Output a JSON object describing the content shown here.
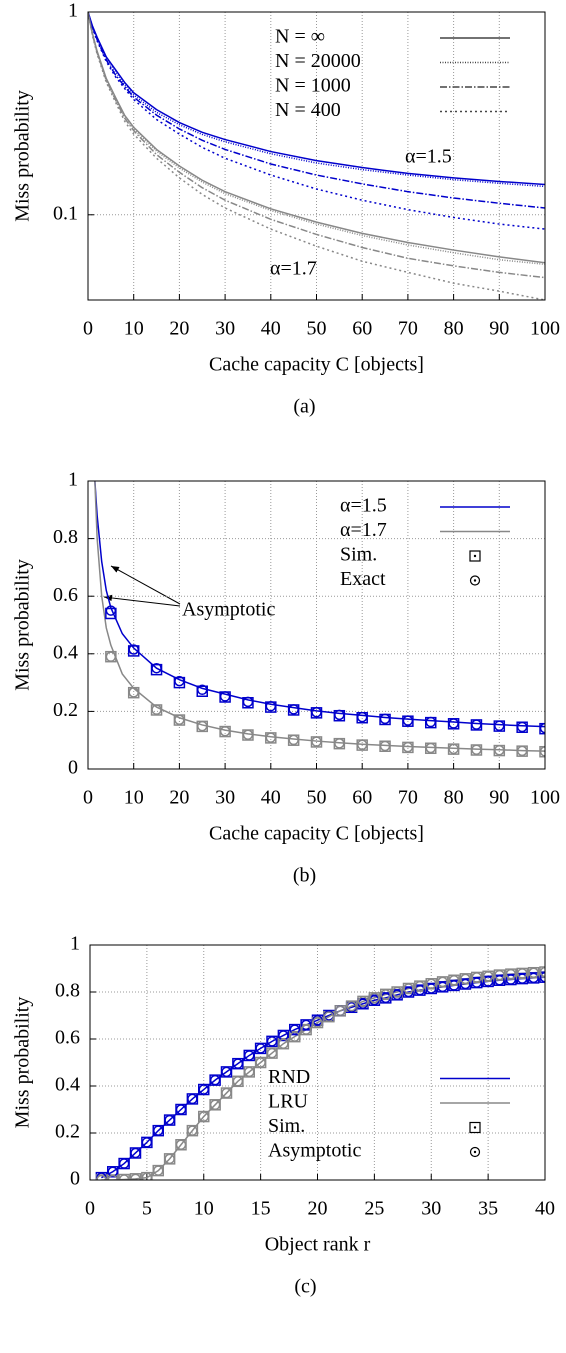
{
  "chart_data": [
    {
      "type": "line",
      "ylabel": "Miss probability",
      "xlabel": "Cache capacity C [objects]",
      "caption": "(a)",
      "log_y": true,
      "grid": true,
      "legend": "upper right",
      "xlim": [
        0,
        100
      ],
      "xticks": [
        0,
        10,
        20,
        30,
        40,
        50,
        60,
        70,
        80,
        90,
        100
      ],
      "ylim": [
        0.038,
        1
      ],
      "yticks": [
        0.1,
        1
      ],
      "x": [
        0,
        1,
        2,
        4,
        6,
        8,
        10,
        15,
        20,
        25,
        30,
        40,
        50,
        60,
        70,
        80,
        90,
        100
      ],
      "series": [
        {
          "name": "N = ∞",
          "dash": "none",
          "legend_color": "#444444",
          "curves": [
            {
              "color": "#0000cc",
              "values": [
                1,
                0.85,
                0.75,
                0.6,
                0.52,
                0.45,
                0.4,
                0.33,
                0.285,
                0.255,
                0.235,
                0.205,
                0.185,
                0.171,
                0.16,
                0.152,
                0.146,
                0.141
              ]
            },
            {
              "color": "#888888",
              "values": [
                1,
                0.78,
                0.64,
                0.47,
                0.38,
                0.31,
                0.27,
                0.21,
                0.174,
                0.148,
                0.13,
                0.107,
                0.092,
                0.081,
                0.073,
                0.067,
                0.062,
                0.058
              ]
            }
          ]
        },
        {
          "name": "N = 20000",
          "dash": "1 1.5",
          "legend_color": "#444444",
          "curves": [
            {
              "color": "#0000cc",
              "values": [
                1,
                0.84,
                0.74,
                0.59,
                0.51,
                0.44,
                0.39,
                0.32,
                0.278,
                0.249,
                0.229,
                0.2,
                0.18,
                0.167,
                0.157,
                0.149,
                0.143,
                0.138
              ]
            },
            {
              "color": "#888888",
              "values": [
                1,
                0.77,
                0.63,
                0.46,
                0.37,
                0.305,
                0.265,
                0.206,
                0.17,
                0.145,
                0.127,
                0.105,
                0.09,
                0.079,
                0.071,
                0.065,
                0.06,
                0.057
              ]
            }
          ]
        },
        {
          "name": "N = 1000",
          "dash": "7 2 1.5 2",
          "legend_color": "#444444",
          "curves": [
            {
              "color": "#0000cc",
              "values": [
                1,
                0.84,
                0.73,
                0.58,
                0.49,
                0.43,
                0.38,
                0.31,
                0.265,
                0.233,
                0.21,
                0.178,
                0.157,
                0.142,
                0.13,
                0.121,
                0.114,
                0.108
              ]
            },
            {
              "color": "#888888",
              "values": [
                1,
                0.77,
                0.63,
                0.46,
                0.37,
                0.3,
                0.26,
                0.198,
                0.162,
                0.136,
                0.118,
                0.095,
                0.08,
                0.069,
                0.061,
                0.056,
                0.052,
                0.049
              ]
            }
          ]
        },
        {
          "name": "N = 400",
          "dash": "2 3",
          "legend_color": "#444444",
          "curves": [
            {
              "color": "#0000cc",
              "values": [
                1,
                0.83,
                0.72,
                0.57,
                0.48,
                0.42,
                0.37,
                0.295,
                0.25,
                0.215,
                0.19,
                0.157,
                0.134,
                0.118,
                0.106,
                0.097,
                0.09,
                0.085
              ]
            },
            {
              "color": "#888888",
              "values": [
                1,
                0.76,
                0.62,
                0.45,
                0.36,
                0.29,
                0.25,
                0.19,
                0.152,
                0.126,
                0.108,
                0.085,
                0.07,
                0.059,
                0.052,
                0.046,
                0.042,
                0.038
              ]
            }
          ]
        }
      ],
      "annotations": [
        "α=1.5",
        "α=1.7"
      ]
    },
    {
      "type": "line",
      "ylabel": "Miss probability",
      "xlabel": "Cache capacity C [objects]",
      "caption": "(b)",
      "log_y": false,
      "grid": true,
      "legend": "upper right",
      "xlim": [
        0,
        100
      ],
      "xticks": [
        0,
        10,
        20,
        30,
        40,
        50,
        60,
        70,
        80,
        90,
        100
      ],
      "ylim": [
        0,
        1
      ],
      "yticks": [
        0,
        0.2,
        0.4,
        0.6,
        0.8,
        1
      ],
      "x": [
        1.5,
        2,
        3,
        4,
        5,
        7.5,
        10,
        15,
        20,
        25,
        30,
        35,
        40,
        45,
        50,
        55,
        60,
        65,
        70,
        75,
        80,
        85,
        90,
        95,
        100
      ],
      "marker_x": [
        5,
        10,
        15,
        20,
        25,
        30,
        35,
        40,
        45,
        50,
        55,
        60,
        65,
        70,
        75,
        80,
        85,
        90,
        95,
        100
      ],
      "series": [
        {
          "name": "α=1.5",
          "dash": "none",
          "curves": [
            {
              "color": "#0000cc",
              "values": [
                1.0,
                0.88,
                0.72,
                0.62,
                0.56,
                0.47,
                0.42,
                0.35,
                0.31,
                0.28,
                0.26,
                0.24,
                0.225,
                0.213,
                0.202,
                0.193,
                0.186,
                0.179,
                0.173,
                0.168,
                0.163,
                0.158,
                0.154,
                0.15,
                0.147
              ]
            }
          ]
        },
        {
          "name": "α=1.7",
          "dash": "none",
          "curves": [
            {
              "color": "#888888",
              "values": [
                1.0,
                0.8,
                0.6,
                0.49,
                0.43,
                0.33,
                0.28,
                0.215,
                0.178,
                0.153,
                0.135,
                0.122,
                0.112,
                0.104,
                0.097,
                0.091,
                0.086,
                0.082,
                0.078,
                0.075,
                0.072,
                0.069,
                0.067,
                0.064,
                0.062
              ]
            }
          ]
        },
        {
          "name": "Sim.",
          "marker": "square",
          "legend_color": "#000000",
          "curves": [
            {
              "color": "#0000cc",
              "values": [
                0.54,
                0.41,
                0.345,
                0.3,
                0.27,
                0.25,
                0.23,
                0.215,
                0.205,
                0.195,
                0.185,
                0.178,
                0.172,
                0.166,
                0.161,
                0.157,
                0.153,
                0.149,
                0.145,
                0.14
              ]
            },
            {
              "color": "#888888",
              "values": [
                0.39,
                0.265,
                0.205,
                0.17,
                0.148,
                0.13,
                0.118,
                0.108,
                0.1,
                0.094,
                0.088,
                0.083,
                0.079,
                0.075,
                0.072,
                0.069,
                0.066,
                0.064,
                0.062,
                0.06
              ]
            }
          ]
        },
        {
          "name": "Exact",
          "marker": "circle",
          "legend_color": "#000000",
          "curves": [
            {
              "color": "#0000cc",
              "values": [
                0.55,
                0.415,
                0.35,
                0.305,
                0.275,
                0.252,
                0.233,
                0.218,
                0.207,
                0.197,
                0.188,
                0.18,
                0.174,
                0.168,
                0.163,
                0.158,
                0.154,
                0.15,
                0.146,
                0.142
              ]
            },
            {
              "color": "#888888",
              "values": [
                0.39,
                0.266,
                0.206,
                0.171,
                0.149,
                0.131,
                0.119,
                0.109,
                0.101,
                0.095,
                0.089,
                0.084,
                0.08,
                0.076,
                0.073,
                0.07,
                0.067,
                0.065,
                0.063,
                0.061
              ]
            }
          ]
        }
      ],
      "annotations": [
        "Asymptotic"
      ]
    },
    {
      "type": "line",
      "ylabel": "Miss probability",
      "xlabel": "Object rank r",
      "caption": "(c)",
      "log_y": false,
      "grid": true,
      "legend": "lower right",
      "xlim": [
        0,
        40
      ],
      "xticks": [
        0,
        5,
        10,
        15,
        20,
        25,
        30,
        35,
        40
      ],
      "ylim": [
        0,
        1
      ],
      "yticks": [
        0,
        0.2,
        0.4,
        0.6,
        0.8,
        1
      ],
      "x": [
        1,
        2,
        3,
        4,
        5,
        6,
        7,
        8,
        9,
        10,
        11,
        12,
        13,
        14,
        15,
        16,
        17,
        18,
        19,
        20,
        21,
        22,
        23,
        24,
        25,
        26,
        27,
        28,
        29,
        30,
        31,
        32,
        33,
        34,
        35,
        36,
        37,
        38,
        39,
        40
      ],
      "series": [
        {
          "name": "RND",
          "dash": "none",
          "curves": [
            {
              "color": "#0000cc",
              "values": [
                0.01,
                0.035,
                0.07,
                0.115,
                0.16,
                0.21,
                0.255,
                0.3,
                0.345,
                0.385,
                0.425,
                0.46,
                0.495,
                0.53,
                0.56,
                0.59,
                0.615,
                0.64,
                0.66,
                0.68,
                0.7,
                0.72,
                0.735,
                0.75,
                0.765,
                0.775,
                0.788,
                0.8,
                0.808,
                0.815,
                0.822,
                0.828,
                0.834,
                0.84,
                0.845,
                0.85,
                0.853,
                0.857,
                0.86,
                0.863
              ]
            }
          ]
        },
        {
          "name": "LRU",
          "dash": "none",
          "curves": [
            {
              "color": "#888888",
              "values": [
                0,
                0,
                0.002,
                0.005,
                0.01,
                0.04,
                0.09,
                0.15,
                0.21,
                0.27,
                0.32,
                0.37,
                0.42,
                0.46,
                0.5,
                0.54,
                0.58,
                0.61,
                0.64,
                0.67,
                0.695,
                0.72,
                0.74,
                0.76,
                0.775,
                0.79,
                0.8,
                0.815,
                0.825,
                0.835,
                0.843,
                0.85,
                0.856,
                0.862,
                0.867,
                0.872,
                0.876,
                0.879,
                0.882,
                0.885
              ]
            }
          ]
        },
        {
          "name": "Sim.",
          "marker": "square",
          "legend_color": "#000000",
          "curves": [
            {
              "color": "#0000cc",
              "values": [
                0.01,
                0.035,
                0.07,
                0.115,
                0.16,
                0.21,
                0.255,
                0.3,
                0.345,
                0.385,
                0.425,
                0.46,
                0.495,
                0.53,
                0.56,
                0.59,
                0.615,
                0.64,
                0.66,
                0.68,
                0.7,
                0.72,
                0.735,
                0.75,
                0.765,
                0.775,
                0.788,
                0.8,
                0.808,
                0.815,
                0.822,
                0.828,
                0.834,
                0.84,
                0.845,
                0.85,
                0.853,
                0.857,
                0.86,
                0.863
              ]
            },
            {
              "color": "#888888",
              "values": [
                0,
                0,
                0.002,
                0.005,
                0.01,
                0.04,
                0.09,
                0.15,
                0.21,
                0.27,
                0.32,
                0.37,
                0.42,
                0.46,
                0.5,
                0.54,
                0.58,
                0.61,
                0.64,
                0.67,
                0.695,
                0.72,
                0.74,
                0.76,
                0.775,
                0.79,
                0.8,
                0.815,
                0.825,
                0.835,
                0.843,
                0.85,
                0.856,
                0.862,
                0.867,
                0.872,
                0.876,
                0.879,
                0.882,
                0.885
              ]
            }
          ]
        },
        {
          "name": "Asymptotic",
          "marker": "circle",
          "legend_color": "#000000",
          "curves": [
            {
              "color": "#0000cc",
              "values": [
                0.01,
                0.035,
                0.07,
                0.115,
                0.16,
                0.21,
                0.255,
                0.3,
                0.345,
                0.385,
                0.425,
                0.46,
                0.495,
                0.53,
                0.56,
                0.59,
                0.615,
                0.64,
                0.66,
                0.68,
                0.7,
                0.72,
                0.735,
                0.75,
                0.765,
                0.775,
                0.788,
                0.8,
                0.808,
                0.815,
                0.822,
                0.828,
                0.834,
                0.84,
                0.845,
                0.85,
                0.853,
                0.857,
                0.86,
                0.863
              ]
            },
            {
              "color": "#888888",
              "values": [
                0,
                0,
                0.002,
                0.005,
                0.01,
                0.04,
                0.09,
                0.15,
                0.21,
                0.27,
                0.32,
                0.37,
                0.42,
                0.46,
                0.5,
                0.54,
                0.58,
                0.61,
                0.64,
                0.67,
                0.695,
                0.72,
                0.74,
                0.76,
                0.775,
                0.79,
                0.8,
                0.815,
                0.825,
                0.835,
                0.843,
                0.85,
                0.856,
                0.862,
                0.867,
                0.872,
                0.876,
                0.879,
                0.882,
                0.885
              ]
            }
          ]
        }
      ]
    }
  ]
}
